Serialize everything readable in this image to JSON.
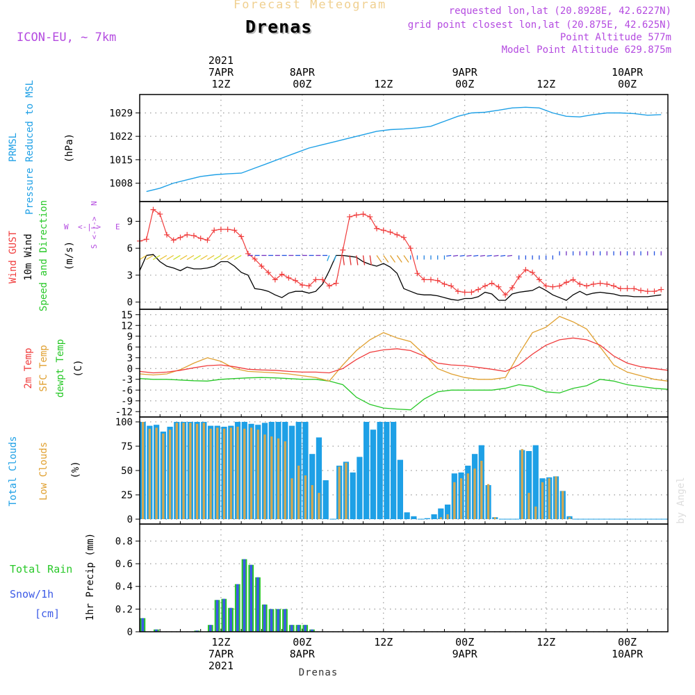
{
  "header": {
    "forecast_label": "Forecast Meteogram",
    "station": "Drenas",
    "model": "ICON-EU, ~ 7km",
    "requested": "requested lon,lat (20.8928E, 42.6227N)",
    "gridpoint": "grid point closest lon,lat (20.875E, 42.625N)",
    "point_alt": "Point Altitude 577m",
    "model_alt": "Model Point Altitude 629.875m",
    "footer_station": "Drenas",
    "credit": "by Angel"
  },
  "time_axis": {
    "top_labels": [
      {
        "hour": 12,
        "lines": [
          "2021",
          "7APR",
          "12Z"
        ]
      },
      {
        "hour": 24,
        "lines": [
          "8APR",
          "00Z"
        ]
      },
      {
        "hour": 36,
        "lines": [
          "12Z"
        ]
      },
      {
        "hour": 48,
        "lines": [
          "9APR",
          "00Z"
        ]
      },
      {
        "hour": 60,
        "lines": [
          "12Z"
        ]
      },
      {
        "hour": 72,
        "lines": [
          "10APR",
          "00Z"
        ]
      }
    ],
    "bottom_labels": [
      {
        "hour": 12,
        "lines": [
          "12Z",
          "7APR",
          "2021"
        ]
      },
      {
        "hour": 24,
        "lines": [
          "00Z",
          "8APR"
        ]
      },
      {
        "hour": 36,
        "lines": [
          "12Z"
        ]
      },
      {
        "hour": 48,
        "lines": [
          "00Z",
          "9APR"
        ]
      },
      {
        "hour": 60,
        "lines": [
          "12Z"
        ]
      },
      {
        "hour": 72,
        "lines": [
          "00Z",
          "10APR"
        ]
      }
    ]
  },
  "panels": {
    "pressure": {
      "labels": [
        "PRMSL",
        "Pressure Reduced to MSL"
      ],
      "unit": "(hPa)",
      "ticks": [
        "1008",
        "1015",
        "1022",
        "1029"
      ]
    },
    "wind": {
      "labels": [
        "Wind GUST",
        "10m Wind",
        "Speed and Direction"
      ],
      "unit": "(m/s)",
      "ticks": [
        "0",
        "3",
        "6",
        "9"
      ],
      "compass": {
        "n": "N",
        "s": "S",
        "w": "W",
        "e": "E",
        "arrows": "<-|->"
      }
    },
    "temp": {
      "labels": [
        "2m Temp",
        "SFC Temp",
        "dewpt Temp"
      ],
      "unit": "(C)",
      "ticks": [
        "-12",
        "-9",
        "-6",
        "-3",
        "0",
        "3",
        "6",
        "9",
        "12",
        "15"
      ]
    },
    "clouds": {
      "labels": [
        "Total Clouds",
        "Low Clouds"
      ],
      "unit": "(%)",
      "ticks": [
        "0",
        "25",
        "50",
        "75",
        "100"
      ]
    },
    "precip": {
      "labels": [
        "Total Rain",
        "Snow/1h",
        "[cm]"
      ],
      "unit": "1hr Precip (mm)",
      "ticks": [
        "0",
        "0.2",
        "0.4",
        "0.6",
        "0.8"
      ]
    }
  },
  "colors": {
    "pressure": "#1ea0e6",
    "gust": "#f03c3c",
    "wind": "#000000",
    "t2m": "#f03c3c",
    "tsfc": "#e0a030",
    "dewpt": "#28c828",
    "total_clouds": "#1ea0e6",
    "low_clouds": "#d4a850",
    "rain": "#28c828",
    "snow": "#3c5ae6",
    "purple": "#b44be0"
  },
  "chart_data": [
    {
      "type": "line",
      "title": "PRMSL Pressure Reduced to MSL",
      "ylabel": "(hPa)",
      "ylim": [
        1002.5,
        1034.5
      ],
      "x_unit": "hours from 7APR 00Z",
      "x": [
        1,
        3,
        5,
        7,
        9,
        11,
        13,
        15,
        17,
        19,
        21,
        23,
        25,
        27,
        29,
        31,
        33,
        35,
        37,
        39,
        41,
        43,
        45,
        47,
        49,
        51,
        53,
        55,
        57,
        59,
        61,
        63,
        65,
        67,
        69,
        71,
        73,
        75,
        77
      ],
      "series": [
        {
          "name": "PRMSL",
          "values": [
            1005.5,
            1006.5,
            1008,
            1009,
            1010,
            1010.5,
            1010.8,
            1011,
            1012.5,
            1014,
            1015.5,
            1017,
            1018.5,
            1019.5,
            1020.5,
            1021.5,
            1022.5,
            1023.5,
            1024,
            1024.2,
            1024.5,
            1025,
            1026.5,
            1028,
            1029,
            1029.2,
            1029.8,
            1030.5,
            1030.7,
            1030.5,
            1029,
            1028,
            1027.8,
            1028.5,
            1029,
            1029,
            1028.8,
            1028.3,
            1028.5
          ]
        }
      ]
    },
    {
      "type": "line",
      "title": "Wind GUST / 10m Wind Speed",
      "ylabel": "(m/s)",
      "ylim": [
        -0.8,
        11.2
      ],
      "x": [
        0,
        1,
        2,
        3,
        4,
        5,
        6,
        7,
        8,
        9,
        10,
        11,
        12,
        13,
        14,
        15,
        16,
        17,
        18,
        19,
        20,
        21,
        22,
        23,
        24,
        25,
        26,
        27,
        28,
        29,
        30,
        31,
        32,
        33,
        34,
        35,
        36,
        37,
        38,
        39,
        40,
        41,
        42,
        43,
        44,
        45,
        46,
        47,
        48,
        49,
        50,
        51,
        52,
        53,
        54,
        55,
        56,
        57,
        58,
        59,
        60,
        61,
        62,
        63,
        64,
        65,
        66,
        67,
        68,
        69,
        70,
        71,
        72,
        73,
        74,
        75,
        76,
        77
      ],
      "series": [
        {
          "name": "Wind GUST",
          "values": [
            6.8,
            7,
            10.3,
            9.8,
            7.5,
            6.9,
            7.2,
            7.5,
            7.4,
            7.1,
            6.9,
            8,
            8.1,
            8.1,
            8,
            7.3,
            5.4,
            4.8,
            4,
            3.3,
            2.5,
            3.1,
            2.7,
            2.4,
            1.9,
            1.8,
            2.5,
            2.5,
            1.8,
            2.1,
            5.8,
            9.5,
            9.7,
            9.8,
            9.5,
            8.2,
            8,
            7.8,
            7.5,
            7.2,
            6,
            3.2,
            2.5,
            2.5,
            2.4,
            2,
            1.8,
            1.2,
            1.1,
            1.1,
            1.4,
            1.8,
            2.1,
            1.7,
            0.8,
            1.6,
            2.8,
            3.6,
            3.3,
            2.5,
            1.8,
            1.7,
            1.8,
            2.2,
            2.5,
            2,
            1.8,
            2,
            2.1,
            2,
            1.8,
            1.5,
            1.5,
            1.5,
            1.3,
            1.2,
            1.2,
            1.4
          ]
        },
        {
          "name": "10m Wind",
          "values": [
            3.5,
            5.2,
            5.3,
            4.5,
            4,
            3.8,
            3.5,
            3.9,
            3.7,
            3.7,
            3.8,
            4,
            4.5,
            4.5,
            4,
            3.3,
            3,
            1.5,
            1.4,
            1.2,
            0.8,
            0.5,
            1,
            1.2,
            1.2,
            1,
            1.2,
            2,
            3.5,
            5.2,
            5.2,
            5.1,
            5,
            4.5,
            4.2,
            4,
            4.3,
            3.9,
            3.2,
            1.5,
            1.2,
            0.9,
            0.8,
            0.8,
            0.7,
            0.5,
            0.3,
            0.2,
            0.4,
            0.4,
            0.6,
            1.1,
            0.9,
            0.2,
            0.2,
            0.9,
            1.1,
            1.2,
            1.3,
            1.7,
            1.3,
            0.8,
            0.5,
            0.2,
            0.8,
            1.2,
            0.8,
            1,
            1.1,
            1,
            0.9,
            0.7,
            0.7,
            0.6,
            0.6,
            0.6,
            0.7,
            0.8
          ]
        }
      ]
    },
    {
      "type": "line",
      "title": "2m Temp / SFC Temp / dewpt Temp",
      "ylabel": "(C)",
      "ylim": [
        -13.5,
        16.5
      ],
      "x": [
        0,
        2,
        4,
        6,
        8,
        10,
        12,
        14,
        16,
        18,
        20,
        22,
        24,
        26,
        28,
        30,
        32,
        34,
        36,
        38,
        40,
        42,
        44,
        46,
        48,
        50,
        52,
        54,
        56,
        58,
        60,
        62,
        64,
        66,
        68,
        70,
        72,
        74,
        76,
        78
      ],
      "series": [
        {
          "name": "2m Temp",
          "values": [
            -0.8,
            -1.2,
            -1,
            -0.5,
            0.2,
            0.8,
            1,
            0.5,
            -0.2,
            -0.4,
            -0.5,
            -0.8,
            -1,
            -1,
            -1.2,
            0,
            2.5,
            4.5,
            5.2,
            5.5,
            5,
            3.5,
            1.5,
            1,
            0.8,
            0.3,
            -0.2,
            -0.8,
            1,
            4,
            6.5,
            8,
            8.5,
            8,
            6.5,
            3.5,
            1.5,
            0.5,
            0,
            -0.5
          ]
        },
        {
          "name": "SFC Temp",
          "values": [
            -1.5,
            -1.8,
            -1.5,
            -0.3,
            1.5,
            3,
            2,
            0,
            -0.8,
            -1,
            -1.2,
            -1.5,
            -2,
            -2.5,
            -3.5,
            1,
            5,
            8,
            10,
            8.5,
            7.5,
            4,
            0,
            -1.5,
            -2.5,
            -3,
            -3,
            -2.5,
            4,
            10,
            11.5,
            14.5,
            13,
            11,
            6,
            1,
            -1,
            -2,
            -3,
            -3.5
          ]
        },
        {
          "name": "dewpt Temp",
          "values": [
            -2.8,
            -3,
            -3,
            -3.2,
            -3.4,
            -3.5,
            -3,
            -2.8,
            -2.6,
            -2.5,
            -2.6,
            -2.8,
            -3,
            -3,
            -3.5,
            -4.5,
            -8,
            -10,
            -11,
            -11.3,
            -11.5,
            -8.5,
            -6.5,
            -6,
            -6,
            -6,
            -6,
            -5.5,
            -4.5,
            -5,
            -6.5,
            -6.8,
            -5.5,
            -4.8,
            -3,
            -3.5,
            -4.5,
            -5,
            -5.5,
            -5.8
          ]
        }
      ]
    },
    {
      "type": "bar",
      "title": "Total Clouds / Low Clouds",
      "ylabel": "(%)",
      "ylim": [
        -5,
        105
      ],
      "x": [
        0,
        1,
        2,
        3,
        4,
        5,
        6,
        7,
        8,
        9,
        10,
        11,
        12,
        13,
        14,
        15,
        16,
        17,
        18,
        19,
        20,
        21,
        22,
        23,
        24,
        25,
        26,
        27,
        28,
        29,
        30,
        31,
        32,
        33,
        34,
        35,
        36,
        37,
        38,
        39,
        40,
        41,
        42,
        43,
        44,
        45,
        46,
        47,
        48,
        49,
        50,
        51,
        52,
        53,
        54,
        55,
        56,
        57,
        58,
        59,
        60,
        61,
        62,
        63,
        64,
        65,
        66,
        67,
        68,
        69,
        70,
        71,
        72,
        73,
        74,
        75,
        76,
        77
      ],
      "series": [
        {
          "name": "Total Clouds",
          "values": [
            100,
            96,
            97,
            90,
            95,
            100,
            100,
            100,
            100,
            100,
            96,
            96,
            95,
            96,
            100,
            100,
            98,
            97,
            99,
            100,
            100,
            100,
            96,
            100,
            100,
            67,
            84,
            40,
            0,
            55,
            59,
            48,
            64,
            100,
            92,
            100,
            100,
            100,
            61,
            7,
            3,
            0,
            1,
            5,
            11,
            15,
            47,
            48,
            55,
            67,
            76,
            35,
            2,
            0,
            0,
            0,
            71,
            70,
            76,
            42,
            43,
            44,
            29,
            3,
            0,
            0,
            0,
            0,
            0,
            0,
            0,
            0,
            0,
            0,
            0,
            0,
            0,
            0
          ]
        },
        {
          "name": "Low Clouds",
          "values": [
            100,
            93,
            94,
            88,
            92,
            99,
            99,
            99,
            98,
            99,
            93,
            94,
            93,
            94,
            95,
            93,
            94,
            92,
            87,
            85,
            83,
            80,
            42,
            55,
            45,
            35,
            27,
            0,
            0,
            54,
            58,
            0,
            0,
            0,
            0,
            0,
            0,
            0,
            0,
            0,
            0,
            0,
            0,
            0,
            2,
            5,
            38,
            42,
            47,
            52,
            60,
            36,
            2,
            0,
            0,
            0,
            72,
            27,
            13,
            38,
            42,
            44,
            29,
            2,
            0,
            0,
            0,
            0,
            0,
            0,
            0,
            0,
            0,
            0,
            0,
            0,
            0,
            0
          ]
        }
      ]
    },
    {
      "type": "bar",
      "title": "1hr Precip Total Rain / Snow",
      "ylabel": "1hr Precip (mm)",
      "ylim": [
        0,
        0.95
      ],
      "x": [
        0,
        1,
        2,
        3,
        4,
        5,
        6,
        7,
        8,
        9,
        10,
        11,
        12,
        13,
        14,
        15,
        16,
        17,
        18,
        19,
        20,
        21,
        22,
        23,
        24,
        25,
        26,
        27,
        28,
        29,
        30,
        31,
        32,
        33,
        34,
        35,
        36,
        37,
        38,
        39,
        40,
        41,
        42,
        43,
        44,
        45,
        46,
        47,
        48,
        49,
        50,
        51,
        52,
        53,
        54,
        55,
        56,
        57,
        58,
        59,
        60,
        61,
        62,
        63,
        64,
        65,
        66,
        67,
        68,
        69,
        70,
        71,
        72,
        73,
        74,
        75,
        76,
        77
      ],
      "series": [
        {
          "name": "Total Rain",
          "values": [
            0.12,
            0,
            0.02,
            0,
            0,
            0,
            0,
            0,
            0.01,
            0,
            0.06,
            0.28,
            0.29,
            0.21,
            0.42,
            0.64,
            0.59,
            0.48,
            0.24,
            0.2,
            0.2,
            0.2,
            0.06,
            0.06,
            0.06,
            0.02,
            0,
            0,
            0,
            0,
            0,
            0,
            0,
            0,
            0,
            0,
            0,
            0,
            0,
            0,
            0,
            0,
            0,
            0,
            0,
            0,
            0,
            0,
            0,
            0,
            0,
            0,
            0,
            0,
            0,
            0,
            0,
            0,
            0,
            0,
            0,
            0,
            0,
            0,
            0,
            0,
            0,
            0,
            0,
            0,
            0,
            0,
            0,
            0,
            0,
            0,
            0,
            0
          ]
        },
        {
          "name": "Snow/1h",
          "values": [
            0.12,
            0,
            0.02,
            0,
            0,
            0,
            0,
            0,
            0.01,
            0,
            0.06,
            0.28,
            0.29,
            0.21,
            0.42,
            0.64,
            0.59,
            0.48,
            0.24,
            0.2,
            0.2,
            0.2,
            0.06,
            0.06,
            0.06,
            0.02,
            0,
            0,
            0,
            0,
            0,
            0,
            0,
            0,
            0,
            0,
            0,
            0,
            0,
            0,
            0,
            0,
            0,
            0,
            0,
            0,
            0,
            0,
            0,
            0,
            0,
            0,
            0,
            0,
            0,
            0,
            0,
            0,
            0,
            0,
            0,
            0,
            0,
            0,
            0,
            0,
            0,
            0,
            0,
            0,
            0,
            0,
            0,
            0,
            0,
            0,
            0,
            0
          ]
        }
      ]
    }
  ]
}
